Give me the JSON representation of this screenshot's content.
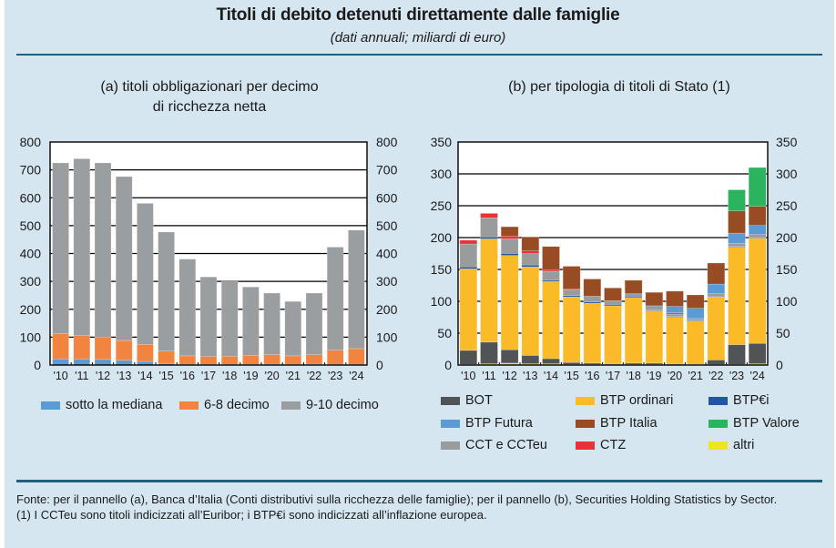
{
  "header": {
    "title": "Titoli di debito detenuti direttamente dalle famiglie",
    "subtitle": "(dati annuali; miliardi di euro)"
  },
  "footer": {
    "source": "Fonte: per il pannello (a), Banca d’Italia (Conti distributivi sulla ricchezza delle famiglie); per il pannello (b), Securities Holding Statistics by Sector.",
    "note": "(1) I CCTeu sono titoli indicizzati all’Euribor; i BTP€i sono indicizzati all’inflazione europea."
  },
  "chart_data": [
    {
      "id": "a",
      "type": "bar",
      "stacked": true,
      "title": "(a) titoli obbligazionari per decimo di ricchezza netta",
      "title_lines": [
        "(a) titoli obbligazionari per decimo",
        "di ricchezza netta"
      ],
      "xlabel": "",
      "ylabel": "",
      "ylim": [
        0,
        800
      ],
      "yticks": [
        0,
        100,
        200,
        300,
        400,
        500,
        600,
        700,
        800
      ],
      "ytick_labels": [
        "0",
        "100",
        "200",
        "300",
        "400",
        "500",
        "600",
        "700",
        "800"
      ],
      "y_axis_both_sides": true,
      "grid": true,
      "legend_position": "bottom",
      "categories": [
        "'10",
        "'11",
        "'12",
        "'13",
        "'14",
        "'15",
        "'16",
        "'17",
        "'18",
        "'19",
        "'20",
        "'21",
        "'22",
        "'23",
        "'24"
      ],
      "series": [
        {
          "name": "sotto la mediana",
          "color": "#5a9bd5",
          "values": [
            22,
            22,
            20,
            17,
            13,
            6,
            2,
            2,
            2,
            2,
            3,
            2,
            3,
            2,
            2
          ]
        },
        {
          "name": "6-8 decimo",
          "color": "#f28440",
          "values": [
            90,
            85,
            80,
            71,
            61,
            44,
            31,
            29,
            30,
            33,
            34,
            31,
            34,
            51,
            57
          ]
        },
        {
          "name": "9-10 decimo",
          "color": "#9b9ea1",
          "values": [
            613,
            633,
            625,
            588,
            506,
            427,
            347,
            285,
            268,
            245,
            221,
            195,
            221,
            370,
            425
          ]
        }
      ],
      "totals": [
        725,
        740,
        725,
        676,
        580,
        477,
        380,
        316,
        300,
        280,
        258,
        228,
        258,
        423,
        484
      ]
    },
    {
      "id": "b",
      "type": "bar",
      "stacked": true,
      "title": "(b) per tipologia di titoli di Stato (1)",
      "title_lines": [
        "(b) per tipologia di titoli di Stato (1)"
      ],
      "xlabel": "",
      "ylabel": "",
      "ylim": [
        0,
        350
      ],
      "yticks": [
        0,
        50,
        100,
        150,
        200,
        250,
        300,
        350
      ],
      "ytick_labels": [
        "0",
        "50",
        "100",
        "150",
        "200",
        "250",
        "300",
        "350"
      ],
      "y_axis_both_sides": true,
      "grid": true,
      "legend_position": "bottom",
      "categories": [
        "'10",
        "'11",
        "'12",
        "'13",
        "'14",
        "'15",
        "'16",
        "'17",
        "'18",
        "'19",
        "'20",
        "'21",
        "'22",
        "'23",
        "'24"
      ],
      "series": [
        {
          "name": "altri",
          "color": "#ece424",
          "values": [
            1,
            2,
            3,
            2,
            2,
            1,
            1,
            1,
            1,
            1,
            1,
            1,
            1,
            1,
            2
          ]
        },
        {
          "name": "BOT",
          "color": "#505457",
          "values": [
            22,
            34,
            21,
            13,
            8,
            3,
            2,
            1,
            2,
            2,
            1,
            0,
            7,
            31,
            32
          ]
        },
        {
          "name": "BTP ordinari",
          "color": "#fbbb29",
          "values": [
            128,
            162,
            148,
            139,
            121,
            103,
            94,
            91,
            103,
            82,
            73,
            68,
            99,
            153,
            165
          ]
        },
        {
          "name": "BTP€i",
          "color": "#1f57a5",
          "values": [
            3,
            3,
            3,
            3,
            2,
            2,
            2,
            2,
            2,
            1,
            1,
            1,
            1,
            1,
            1
          ]
        },
        {
          "name": "CCT e CCTeu",
          "color": "#9a9b9d",
          "values": [
            36,
            30,
            23,
            18,
            14,
            9,
            9,
            6,
            4,
            7,
            4,
            3,
            4,
            5,
            5
          ]
        },
        {
          "name": "CTZ",
          "color": "#e83238",
          "values": [
            6,
            7,
            4,
            4,
            2,
            1,
            0,
            0,
            0,
            0,
            2,
            0,
            0,
            0,
            0
          ]
        },
        {
          "name": "BTP Futura",
          "color": "#5a9bd5",
          "values": [
            0,
            0,
            0,
            0,
            0,
            0,
            0,
            0,
            0,
            0,
            10,
            16,
            15,
            16,
            14
          ]
        },
        {
          "name": "BTP Italia",
          "color": "#984c23",
          "values": [
            0,
            0,
            15,
            22,
            37,
            36,
            27,
            20,
            21,
            21,
            24,
            21,
            33,
            35,
            30
          ]
        },
        {
          "name": "BTP Valore",
          "color": "#2bb35e",
          "values": [
            0,
            0,
            0,
            0,
            0,
            0,
            0,
            0,
            0,
            0,
            0,
            0,
            0,
            33,
            61
          ]
        }
      ],
      "totals": [
        196,
        238,
        217,
        201,
        186,
        155,
        135,
        121,
        133,
        114,
        116,
        110,
        160,
        275,
        310
      ],
      "legend_order": [
        "BOT",
        "BTP ordinari",
        "BTP€i",
        "BTP Futura",
        "BTP Italia",
        "BTP Valore",
        "CCT e CCTeu",
        "CTZ",
        "altri"
      ]
    }
  ]
}
